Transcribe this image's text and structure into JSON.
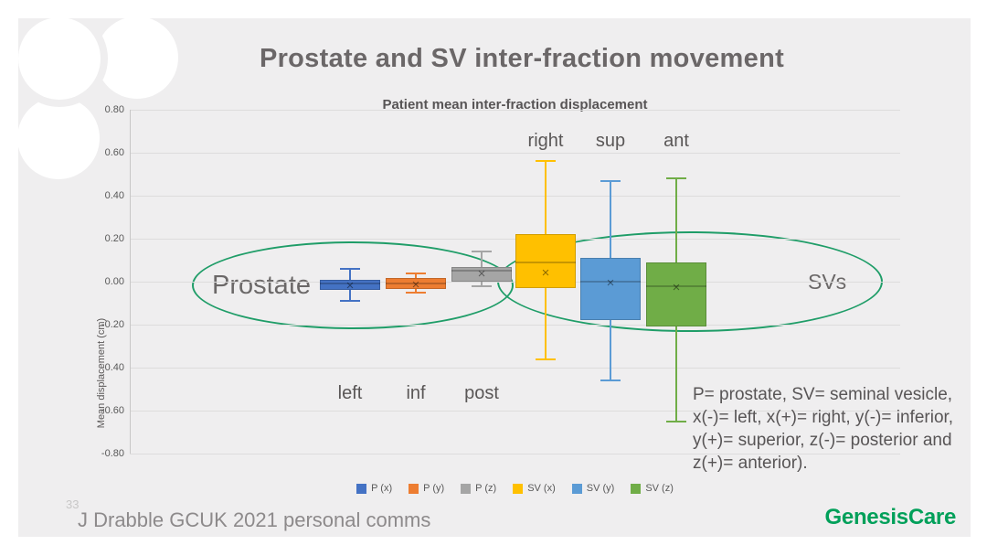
{
  "slide": {
    "title": "Prostate and SV inter-fraction movement",
    "page_number": "33",
    "footer_left": "J Drabble GCUK 2021 personal comms",
    "logo_text": "GenesisCare",
    "annotation": "P= prostate, SV= seminal vesicle, x(-)= left, x(+)= right, y(-)= inferior, y(+)= superior, z(-)= posterior and z(+)= anterior).",
    "colors": {
      "slide_background": "#efeeef",
      "page_background": "#ffffff",
      "title_text": "#6b6768",
      "axis_text": "#595959",
      "gridline": "#dddcdd",
      "ellipse_stroke": "#1f9d68",
      "logo_green": "#00a05a"
    }
  },
  "chart_data": {
    "type": "box",
    "title": "Patient mean inter-fraction displacement",
    "ylabel": "Mean displacement (cm)",
    "ylim": [
      -0.8,
      0.8
    ],
    "ytick_labels": [
      "0.80",
      "0.60",
      "0.40",
      "0.20",
      "0.00",
      "-0.20",
      "-0.40",
      "-0.60",
      "-0.80"
    ],
    "grid": true,
    "legend_position": "bottom",
    "series": [
      {
        "name": "P (x)",
        "color": "#4472c4",
        "direction_label": "left",
        "label_position": "below",
        "whisker_low": -0.09,
        "q1": -0.04,
        "median": -0.01,
        "q3": 0.01,
        "whisker_high": 0.06,
        "mean": -0.02
      },
      {
        "name": "P (y)",
        "color": "#ed7d31",
        "direction_label": "inf",
        "label_position": "below",
        "whisker_low": -0.05,
        "q1": -0.035,
        "median": -0.01,
        "q3": 0.015,
        "whisker_high": 0.04,
        "mean": -0.015
      },
      {
        "name": "P (z)",
        "color": "#a5a5a5",
        "direction_label": "post",
        "label_position": "below",
        "whisker_low": -0.02,
        "q1": 0.0,
        "median": 0.05,
        "q3": 0.07,
        "whisker_high": 0.14,
        "mean": 0.035
      },
      {
        "name": "SV (x)",
        "color": "#ffc000",
        "direction_label": "right",
        "label_position": "above",
        "whisker_low": -0.36,
        "q1": -0.03,
        "median": 0.09,
        "q3": 0.22,
        "whisker_high": 0.56,
        "mean": 0.04
      },
      {
        "name": "SV (y)",
        "color": "#5b9bd5",
        "direction_label": "sup",
        "label_position": "above",
        "whisker_low": -0.46,
        "q1": -0.18,
        "median": 0.0,
        "q3": 0.11,
        "whisker_high": 0.47,
        "mean": -0.01
      },
      {
        "name": "SV (z)",
        "color": "#70ad47",
        "direction_label": "ant",
        "label_position": "above",
        "whisker_low": -0.65,
        "q1": -0.21,
        "median": -0.02,
        "q3": 0.09,
        "whisker_high": 0.48,
        "mean": -0.03
      }
    ],
    "groups": [
      {
        "label": "Prostate",
        "members": [
          "P (x)",
          "P (y)",
          "P (z)"
        ]
      },
      {
        "label": "SVs",
        "members": [
          "SV (x)",
          "SV (y)",
          "SV (z)"
        ]
      }
    ],
    "legend": [
      "P (x)",
      "P (y)",
      "P (z)",
      "SV (x)",
      "SV (y)",
      "SV (z)"
    ]
  }
}
